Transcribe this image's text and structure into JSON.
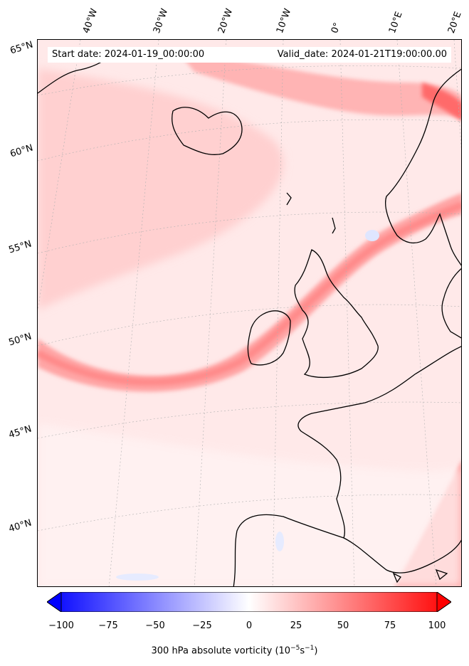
{
  "map": {
    "start_date": "Start date: 2024-01-19_00:00:00",
    "valid_date": "Valid_date: 2024-01-21T19:00:00.00",
    "lon_labels": [
      "40°W",
      "30°W",
      "20°W",
      "10°W",
      "0°",
      "10°E",
      "20°E"
    ],
    "lat_labels": [
      "65°N",
      "60°N",
      "55°N",
      "50°N",
      "45°N",
      "40°N"
    ],
    "field": "300 hPa absolute vorticity"
  },
  "colorbar": {
    "label_main": "300 hPa absolute vorticity (10",
    "label_exp1": "−5",
    "label_mid": "s",
    "label_exp2": "−1",
    "label_end": ")",
    "ticks": [
      "−100",
      "−75",
      "−50",
      "−25",
      "0",
      "25",
      "50",
      "75",
      "100"
    ],
    "range": [
      -100,
      100
    ],
    "colors": {
      "negative": "#0000ff",
      "zero": "#ffffff",
      "positive": "#ff0000"
    }
  }
}
